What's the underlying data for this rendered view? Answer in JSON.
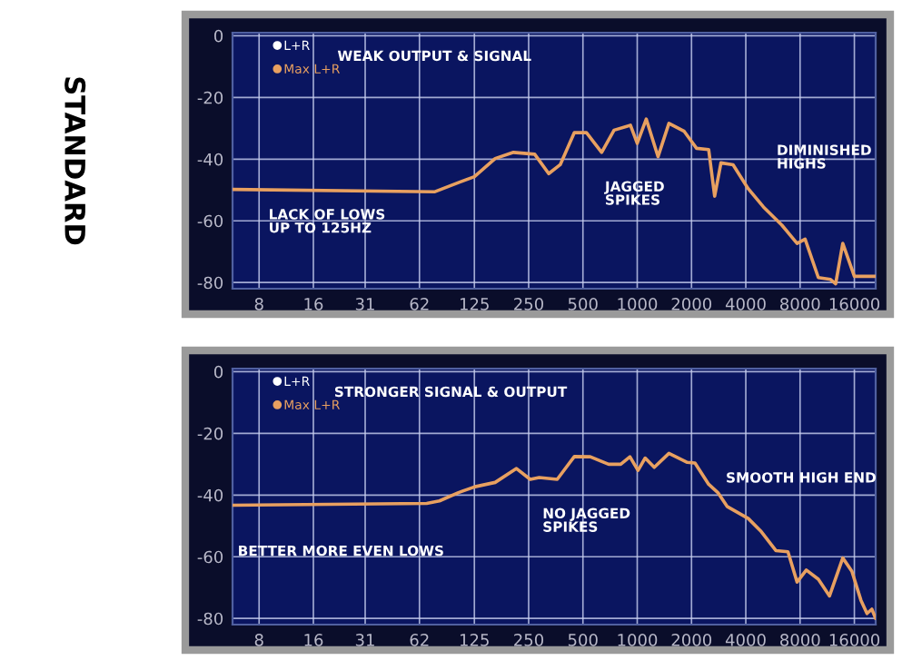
{
  "chart_data": [
    {
      "type": "line",
      "title": "STANDARD",
      "series": [
        {
          "name": "L+R",
          "color": "#ffffff"
        },
        {
          "name": "Max L+R",
          "color": "#e8a060",
          "x": [
            5.7,
            75,
            102,
            125,
            163,
            206,
            270,
            323,
            374,
            448,
            523,
            635,
            744,
            917,
            1000,
            1122,
            1304,
            1499,
            1822,
            2133,
            2490,
            2687,
            2913,
            3400,
            4128,
            5010,
            6340,
            7700,
            8530,
            10100,
            11800,
            12600,
            13800,
            16000,
            21000
          ],
          "values": [
            -49.8,
            -50.6,
            -47.6,
            -45.7,
            -39.8,
            -37.8,
            -38.4,
            -44.7,
            -41.8,
            -31.4,
            -31.4,
            -37.8,
            -30.6,
            -29,
            -34.9,
            -27,
            -39.2,
            -28.4,
            -31,
            -36.5,
            -36.9,
            -52,
            -41.2,
            -41.8,
            -49.6,
            -55.5,
            -61.4,
            -67.3,
            -65.9,
            -78.4,
            -79,
            -80.4,
            -67.3,
            -78,
            -78
          ]
        }
      ],
      "log": "x",
      "xlim": [
        5.7,
        21000
      ],
      "ylim": [
        -82,
        1
      ],
      "xticks": [
        8,
        16,
        31,
        62,
        125,
        250,
        500,
        1000,
        2000,
        4000,
        8000,
        16000
      ],
      "yticks": [
        0,
        -20,
        -40,
        -60,
        -80
      ],
      "grid": true,
      "legend": "top left",
      "marker": "none",
      "line_style": "solid",
      "annotations": [
        "WEAK OUTPUT & SIGNAL",
        "LACK OF LOWS\nUP TO 125HZ",
        "JAGGED\nSPIKES",
        "DIMINISHED\nHIGHS"
      ]
    },
    {
      "type": "line",
      "series": [
        {
          "name": "L+R",
          "color": "#ffffff"
        },
        {
          "name": "Max L+R",
          "color": "#e8a060",
          "x": [
            5.7,
            68,
            80,
            102,
            126,
            163,
            214,
            255,
            286,
            360,
            448,
            549,
            694,
            810,
            911,
            1010,
            1107,
            1243,
            1499,
            1895,
            2090,
            2490,
            2800,
            3150,
            4128,
            4830,
            5870,
            6850,
            7700,
            8660,
            10100,
            11650,
            13800,
            15500,
            17400,
            18800,
            20000,
            21000
          ],
          "values": [
            -43.3,
            -42.7,
            -41.9,
            -39.2,
            -37.3,
            -35.9,
            -31.4,
            -34.9,
            -34.3,
            -34.9,
            -27.5,
            -27.6,
            -30,
            -30,
            -27.6,
            -32,
            -28,
            -31,
            -26.5,
            -29.4,
            -29.6,
            -36.5,
            -39.2,
            -43.7,
            -47.6,
            -51.6,
            -58,
            -58.4,
            -68.2,
            -64.3,
            -67.3,
            -72.7,
            -60.4,
            -64.7,
            -74.1,
            -78.4,
            -77,
            -80
          ]
        }
      ],
      "log": "x",
      "xlim": [
        5.7,
        21000
      ],
      "ylim": [
        -82,
        1
      ],
      "xticks": [
        8,
        16,
        31,
        62,
        125,
        250,
        500,
        1000,
        2000,
        4000,
        8000,
        16000
      ],
      "yticks": [
        0,
        -20,
        -40,
        -60,
        -80
      ],
      "grid": true,
      "legend": "top left",
      "marker": "none",
      "line_style": "solid",
      "annotations": [
        "STRONGER SIGNAL & OUTPUT",
        "BETTER MORE EVEN LOWS",
        "NO JAGGED\nSPIKES",
        "SMOOTH HIGH END"
      ]
    }
  ]
}
